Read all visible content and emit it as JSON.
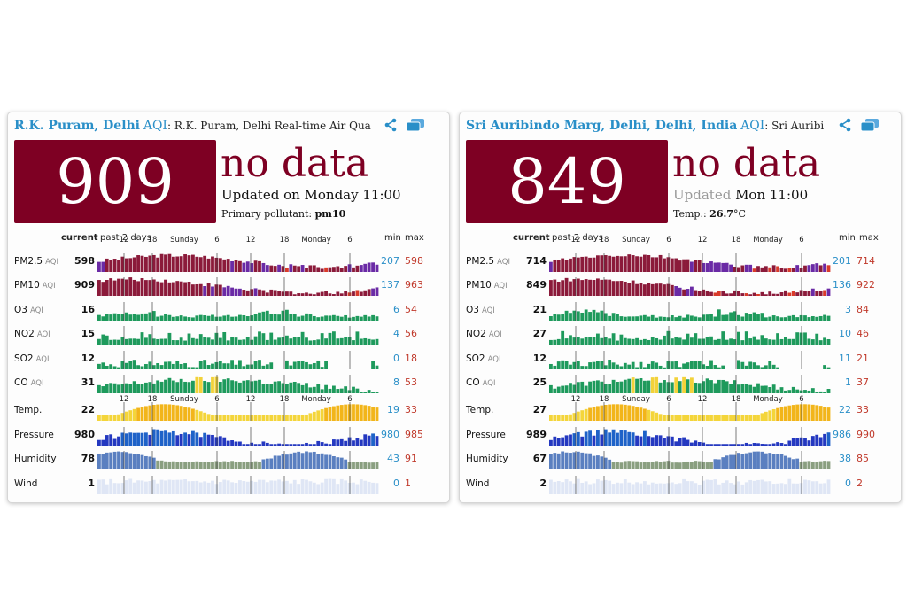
{
  "colors": {
    "hazardous": "#7e0023",
    "link": "#2a8fc8",
    "min": "#2a8fc8",
    "max": "#c0392b"
  },
  "cards": [
    {
      "title_city": "R.K. Puram, Delhi",
      "title_aqi": "AQI",
      "title_rest": ": R.K. Puram, Delhi Real-time Air Qua",
      "aqi_value": "909",
      "status": "no data",
      "updated_prefix": "Updated on Monday 11:00",
      "updated_time": "",
      "sub_label": "Primary pollutant: ",
      "sub_value": "pm10",
      "header_current": "current",
      "header_past": "past 2 days",
      "header_min": "min",
      "header_max": "max",
      "axis_labels": [
        "12",
        "18",
        "Sunday",
        "6",
        "12",
        "18",
        "Monday",
        "6"
      ],
      "rows": [
        {
          "label": "PM2.5",
          "aqi_tag": "AQI",
          "current": "598",
          "min": "207",
          "max": "598",
          "kind": "pm25"
        },
        {
          "label": "PM10",
          "aqi_tag": "AQI",
          "current": "909",
          "min": "137",
          "max": "963",
          "kind": "pm10"
        },
        {
          "label": "O3",
          "aqi_tag": "AQI",
          "current": "16",
          "min": "6",
          "max": "54",
          "kind": "o3"
        },
        {
          "label": "NO2",
          "aqi_tag": "AQI",
          "current": "15",
          "min": "4",
          "max": "56",
          "kind": "no2"
        },
        {
          "label": "SO2",
          "aqi_tag": "AQI",
          "current": "12",
          "min": "0",
          "max": "18",
          "kind": "so2"
        },
        {
          "label": "CO",
          "aqi_tag": "AQI",
          "current": "31",
          "min": "8",
          "max": "53",
          "kind": "co"
        },
        {
          "label": "Temp.",
          "aqi_tag": "",
          "current": "22",
          "min": "19",
          "max": "33",
          "kind": "temp"
        },
        {
          "label": "Pressure",
          "aqi_tag": "",
          "current": "980",
          "min": "980",
          "max": "985",
          "kind": "press"
        },
        {
          "label": "Humidity",
          "aqi_tag": "",
          "current": "78",
          "min": "43",
          "max": "91",
          "kind": "hum"
        },
        {
          "label": "Wind",
          "aqi_tag": "",
          "current": "1",
          "min": "0",
          "max": "1",
          "kind": "wind"
        }
      ]
    },
    {
      "title_city": "Sri Auribindo Marg, Delhi, Delhi, India",
      "title_aqi": "AQI",
      "title_rest": ": Sri Auribi",
      "aqi_value": "849",
      "status": "no data",
      "updated_prefix": "Updated",
      "updated_time": " Mon 11:00",
      "sub_label": "Temp.: ",
      "sub_value": "26.7",
      "sub_unit": "°C",
      "header_current": "current",
      "header_past": "past 2 days",
      "header_min": "min",
      "header_max": "max",
      "axis_labels": [
        "12",
        "18",
        "Sunday",
        "6",
        "12",
        "18",
        "Monday",
        "6"
      ],
      "rows": [
        {
          "label": "PM2.5",
          "aqi_tag": "AQI",
          "current": "714",
          "min": "201",
          "max": "714",
          "kind": "pm25"
        },
        {
          "label": "PM10",
          "aqi_tag": "AQI",
          "current": "849",
          "min": "136",
          "max": "922",
          "kind": "pm10"
        },
        {
          "label": "O3",
          "aqi_tag": "AQI",
          "current": "21",
          "min": "3",
          "max": "84",
          "kind": "o3"
        },
        {
          "label": "NO2",
          "aqi_tag": "AQI",
          "current": "27",
          "min": "10",
          "max": "46",
          "kind": "no2"
        },
        {
          "label": "SO2",
          "aqi_tag": "AQI",
          "current": "12",
          "min": "11",
          "max": "21",
          "kind": "so2"
        },
        {
          "label": "CO",
          "aqi_tag": "AQI",
          "current": "25",
          "min": "1",
          "max": "37",
          "kind": "co"
        },
        {
          "label": "Temp.",
          "aqi_tag": "",
          "current": "27",
          "min": "22",
          "max": "33",
          "kind": "temp"
        },
        {
          "label": "Pressure",
          "aqi_tag": "",
          "current": "989",
          "min": "986",
          "max": "990",
          "kind": "press"
        },
        {
          "label": "Humidity",
          "aqi_tag": "",
          "current": "67",
          "min": "38",
          "max": "85",
          "kind": "hum"
        },
        {
          "label": "Wind",
          "aqi_tag": "",
          "current": "2",
          "min": "0",
          "max": "2",
          "kind": "wind"
        }
      ]
    }
  ]
}
